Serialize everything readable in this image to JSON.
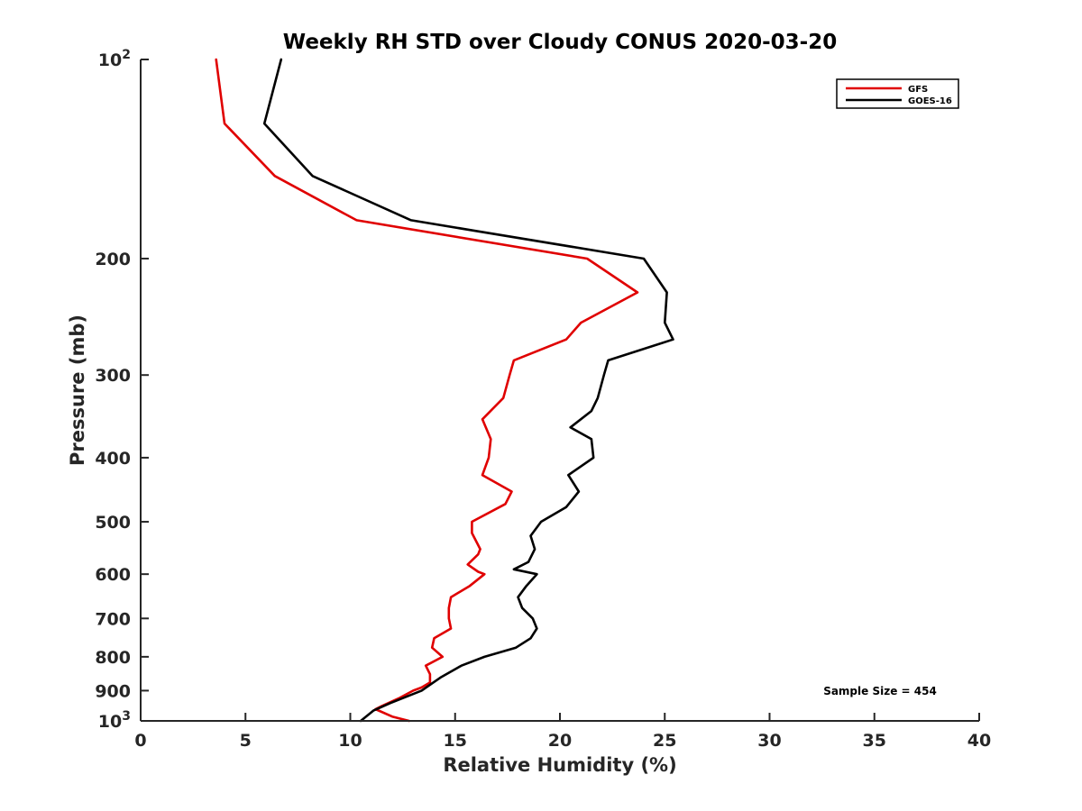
{
  "chart_data": {
    "type": "line",
    "title": "Weekly RH STD over Cloudy CONUS 2020-03-20",
    "xlabel": "Relative Humidity (%)",
    "ylabel": "Pressure (mb)",
    "xlim": [
      0,
      40
    ],
    "ylim": [
      100,
      1000
    ],
    "y_scale": "log",
    "y_reversed": true,
    "grid": false,
    "legend_position": "top-right",
    "x_ticks": [
      0,
      5,
      10,
      15,
      20,
      25,
      30,
      35,
      40
    ],
    "x_tick_labels": [
      "0",
      "5",
      "10",
      "15",
      "20",
      "25",
      "30",
      "35",
      "40"
    ],
    "y_ticks": [
      100,
      200,
      300,
      400,
      500,
      600,
      700,
      800,
      900,
      1000
    ],
    "y_tick_labels": [
      {
        "base": "10",
        "exp": "2"
      },
      {
        "base": "200",
        "exp": ""
      },
      {
        "base": "300",
        "exp": ""
      },
      {
        "base": "400",
        "exp": ""
      },
      {
        "base": "500",
        "exp": ""
      },
      {
        "base": "600",
        "exp": ""
      },
      {
        "base": "700",
        "exp": ""
      },
      {
        "base": "800",
        "exp": ""
      },
      {
        "base": "900",
        "exp": ""
      },
      {
        "base": "10",
        "exp": "3"
      }
    ],
    "annotation": "Sample Size = 454",
    "series": [
      {
        "name": "GFS",
        "color": "#e00000",
        "points": [
          [
            3.6,
            100
          ],
          [
            4.0,
            125
          ],
          [
            6.4,
            150
          ],
          [
            10.3,
            175
          ],
          [
            21.3,
            200
          ],
          [
            23.7,
            225
          ],
          [
            21.0,
            250
          ],
          [
            20.3,
            265
          ],
          [
            17.8,
            285
          ],
          [
            17.6,
            300
          ],
          [
            17.3,
            325
          ],
          [
            16.3,
            350
          ],
          [
            16.7,
            375
          ],
          [
            16.6,
            400
          ],
          [
            16.3,
            425
          ],
          [
            17.7,
            450
          ],
          [
            17.4,
            470
          ],
          [
            15.8,
            500
          ],
          [
            15.8,
            520
          ],
          [
            16.2,
            550
          ],
          [
            16.1,
            560
          ],
          [
            15.6,
            580
          ],
          [
            16.1,
            595
          ],
          [
            16.4,
            600
          ],
          [
            15.7,
            625
          ],
          [
            14.8,
            650
          ],
          [
            14.7,
            675
          ],
          [
            14.7,
            700
          ],
          [
            14.8,
            725
          ],
          [
            14.0,
            750
          ],
          [
            13.9,
            775
          ],
          [
            14.4,
            800
          ],
          [
            13.6,
            825
          ],
          [
            13.8,
            850
          ],
          [
            13.8,
            875
          ],
          [
            13.4,
            890
          ],
          [
            13.0,
            900
          ],
          [
            12.3,
            925
          ],
          [
            11.5,
            950
          ],
          [
            11.2,
            960
          ],
          [
            12.0,
            985
          ],
          [
            12.8,
            1000
          ]
        ]
      },
      {
        "name": "GOES-16",
        "color": "#000000",
        "points": [
          [
            6.7,
            100
          ],
          [
            5.9,
            125
          ],
          [
            8.2,
            150
          ],
          [
            12.9,
            175
          ],
          [
            24.0,
            200
          ],
          [
            25.1,
            225
          ],
          [
            25.0,
            250
          ],
          [
            25.4,
            265
          ],
          [
            22.3,
            285
          ],
          [
            22.1,
            300
          ],
          [
            21.8,
            325
          ],
          [
            21.5,
            340
          ],
          [
            20.5,
            360
          ],
          [
            21.5,
            375
          ],
          [
            21.6,
            400
          ],
          [
            20.4,
            425
          ],
          [
            20.9,
            450
          ],
          [
            20.3,
            475
          ],
          [
            19.1,
            500
          ],
          [
            18.6,
            525
          ],
          [
            18.8,
            550
          ],
          [
            18.5,
            575
          ],
          [
            17.8,
            590
          ],
          [
            18.9,
            600
          ],
          [
            18.4,
            625
          ],
          [
            18.0,
            650
          ],
          [
            18.2,
            675
          ],
          [
            18.7,
            700
          ],
          [
            18.9,
            725
          ],
          [
            18.6,
            750
          ],
          [
            17.9,
            775
          ],
          [
            16.4,
            800
          ],
          [
            15.3,
            825
          ],
          [
            14.3,
            860
          ],
          [
            13.4,
            900
          ],
          [
            11.9,
            940
          ],
          [
            11.1,
            965
          ],
          [
            10.5,
            1000
          ]
        ]
      }
    ]
  }
}
